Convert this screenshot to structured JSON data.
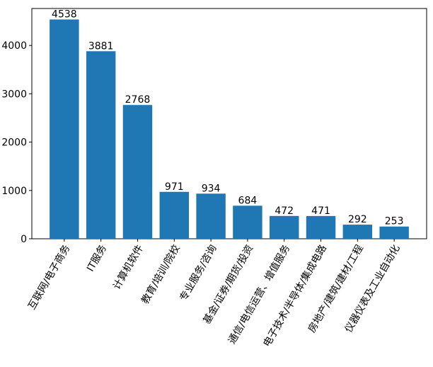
{
  "chart_data": {
    "type": "bar",
    "categories": [
      "互联网/电子商务",
      "IT服务",
      "计算机软件",
      "教育/培训/院校",
      "专业服务/咨询",
      "基金/证券/期货/投资",
      "通信/电信运营、增值服务",
      "电子技术/半导体/集成电路",
      "房地产/建筑/建材/工程",
      "仪器仪表及工业自动化"
    ],
    "values": [
      4538,
      3881,
      2768,
      971,
      934,
      684,
      472,
      471,
      292,
      253
    ],
    "color": "#1f77b4",
    "ylim": [
      0,
      4765
    ],
    "yticks": [
      0,
      1000,
      2000,
      3000,
      4000
    ]
  }
}
